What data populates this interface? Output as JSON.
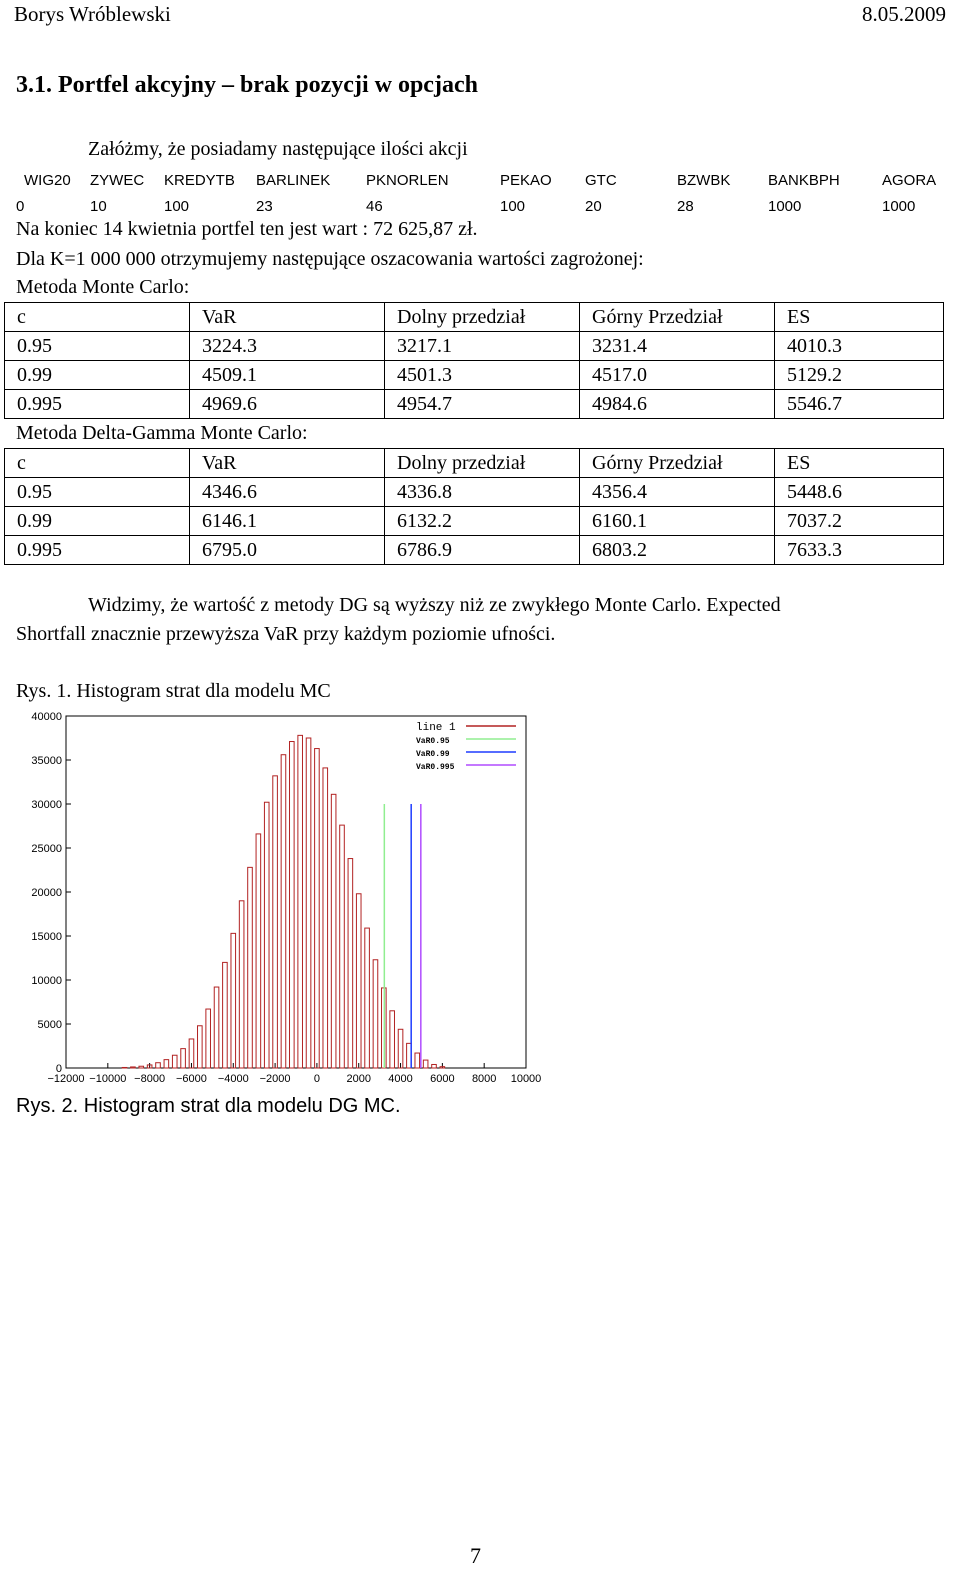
{
  "header": {
    "author": "Borys Wróblewski",
    "date": "8.05.2009"
  },
  "section_title": "3.1. Portfel  akcyjny – brak pozycji w opcjach",
  "intro": "Załóżmy, że posiadamy następujące ilości akcji",
  "stocks": {
    "names": [
      "WIG20",
      "ZYWEC",
      "KREDYTB",
      "BARLINEK",
      "PKNORLEN",
      "PEKAO",
      "GTC",
      "BZWBK",
      "BANKBPH",
      "AGORA"
    ],
    "quantities": [
      "0",
      "10",
      "100",
      "23",
      "46",
      "100",
      "20",
      "28",
      "1000",
      "1000"
    ]
  },
  "portfolio_value_text": "Na koniec 14 kwietnia portfel ten jest wart : 72 625,87 zł.",
  "k_text": "Dla K=1 000 000 otrzymujemy następujące oszacowania wartości zagrożonej:",
  "mc": {
    "title": "Metoda Monte Carlo:",
    "headers": [
      "c",
      "VaR",
      "Dolny przedział",
      "Górny Przedział",
      "ES"
    ],
    "rows": [
      [
        "0.95",
        "3224.3",
        "3217.1",
        "3231.4",
        "4010.3"
      ],
      [
        "0.99",
        "4509.1",
        "4501.3",
        "4517.0",
        "5129.2"
      ],
      [
        "0.995",
        "4969.6",
        "4954.7",
        "4984.6",
        "5546.7"
      ]
    ]
  },
  "dgmc": {
    "title": "Metoda Delta-Gamma Monte Carlo:",
    "headers": [
      "c",
      "VaR",
      "Dolny przedział",
      "Górny Przedział",
      "ES"
    ],
    "rows": [
      [
        "0.95",
        "4346.6",
        "4336.8",
        "4356.4",
        "5448.6"
      ],
      [
        "0.99",
        "6146.1",
        "6132.2",
        "6160.1",
        "7037.2"
      ],
      [
        "0.995",
        "6795.0",
        "6786.9",
        "6803.2",
        "7633.3"
      ]
    ]
  },
  "conclusion_line1": "Widzimy, że wartość z metody DG są wyższy niż ze zwykłego Monte Carlo. Expected",
  "conclusion_line2": "Shortfall  znacznie przewyższa VaR  przy każdym poziomie ufności.",
  "fig1_caption": "Rys. 1. Histogram strat dla modelu MC",
  "fig2_caption": "Rys. 2. Histogram strat dla modelu DG MC.",
  "page_number": "7",
  "chart_data": {
    "type": "bar",
    "xlim": [
      -12000,
      10000
    ],
    "ylim": [
      0,
      40000
    ],
    "x_ticks": [
      -12000,
      -10000,
      -8000,
      -6000,
      -4000,
      -2000,
      0,
      2000,
      4000,
      6000,
      8000,
      10000
    ],
    "y_ticks": [
      0,
      5000,
      10000,
      15000,
      20000,
      25000,
      30000,
      35000,
      40000
    ],
    "bar_color": "#b22222",
    "grid": false,
    "legend_position": "top-right",
    "series": [
      {
        "name": "line 1",
        "type": "bar",
        "color": "#b22222",
        "x": [
          -10000,
          -9600,
          -9200,
          -8800,
          -8400,
          -8000,
          -7600,
          -7200,
          -6800,
          -6400,
          -6000,
          -5600,
          -5200,
          -4800,
          -4400,
          -4000,
          -3600,
          -3200,
          -2800,
          -2400,
          -2000,
          -1600,
          -1200,
          -800,
          -400,
          0,
          400,
          800,
          1200,
          1600,
          2000,
          2400,
          2800,
          3200,
          3600,
          4000,
          4400,
          4800,
          5200,
          5600,
          6000
        ],
        "y": [
          0,
          0,
          60,
          120,
          200,
          350,
          600,
          950,
          1450,
          2200,
          3300,
          4800,
          6700,
          9200,
          12000,
          15300,
          19000,
          22800,
          26600,
          30200,
          33200,
          35600,
          37100,
          37800,
          37500,
          36300,
          34100,
          31100,
          27600,
          23800,
          19800,
          15900,
          12300,
          9100,
          6500,
          4400,
          2800,
          1700,
          900,
          400,
          150
        ]
      },
      {
        "name": "VaR0.95",
        "type": "vline",
        "color": "#90ee90",
        "x": 3224.3
      },
      {
        "name": "VaR0.99",
        "type": "vline",
        "color": "#1e3cff",
        "x": 4509.1
      },
      {
        "name": "VaR0.995",
        "type": "vline",
        "color": "#b04cff",
        "x": 4969.6
      }
    ]
  }
}
